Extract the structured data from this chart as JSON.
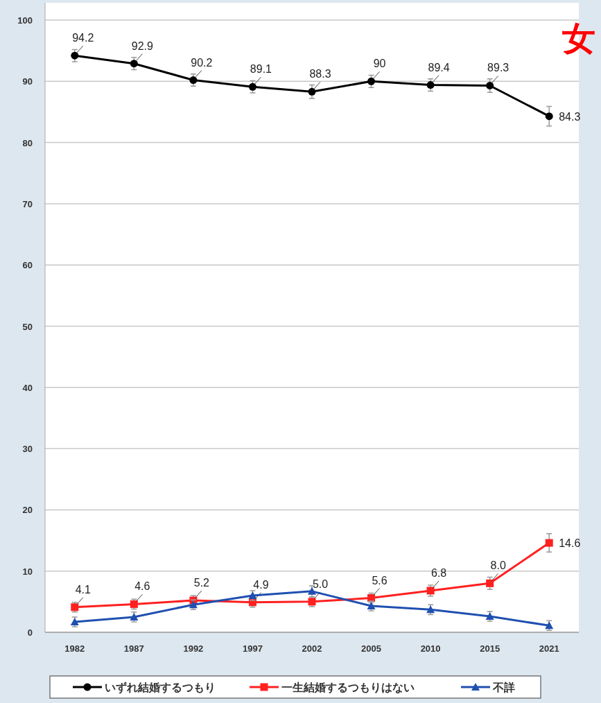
{
  "chart_data": {
    "type": "line",
    "categories": [
      "1982",
      "1987",
      "1992",
      "1997",
      "2002",
      "2005",
      "2010",
      "2015",
      "2021"
    ],
    "series": [
      {
        "name": "いずれ結婚するつもり",
        "color": "#000000",
        "marker": "circle",
        "values": [
          94.2,
          92.9,
          90.2,
          89.1,
          88.3,
          90,
          89.4,
          89.3,
          84.3
        ],
        "value_labels": [
          "94.2",
          "92.9",
          "90.2",
          "89.1",
          "88.3",
          "90",
          "89.4",
          "89.3",
          "84.3"
        ],
        "errors": [
          1.0,
          1.0,
          1.0,
          1.0,
          1.1,
          1.0,
          1.0,
          1.1,
          1.6
        ]
      },
      {
        "name": "一生結婚するつもりはない",
        "color": "#ff2020",
        "marker": "square",
        "values": [
          4.1,
          4.6,
          5.2,
          4.9,
          5.0,
          5.6,
          6.8,
          8.0,
          14.6
        ],
        "value_labels": [
          "4.1",
          "4.6",
          "5.2",
          "4.9",
          "5.0",
          "5.6",
          "6.8",
          "8.0",
          "14.6"
        ],
        "errors": [
          0.8,
          0.8,
          0.8,
          0.8,
          0.8,
          0.8,
          0.9,
          1.0,
          1.5
        ]
      },
      {
        "name": "不詳",
        "color": "#1f4fb0",
        "marker": "triangle",
        "values": [
          1.7,
          2.5,
          4.5,
          6.0,
          6.7,
          4.3,
          3.7,
          2.6,
          1.1
        ],
        "errors": [
          0.8,
          0.8,
          0.8,
          0.8,
          0.9,
          0.8,
          0.8,
          0.8,
          0.8
        ]
      }
    ],
    "ylim": [
      0,
      100
    ],
    "yticks": [
      0,
      10,
      20,
      30,
      40,
      50,
      60,
      70,
      80,
      90,
      100
    ],
    "grid": "y",
    "legend": "bottom",
    "line_style": "solid",
    "annotations": [
      "女"
    ]
  }
}
